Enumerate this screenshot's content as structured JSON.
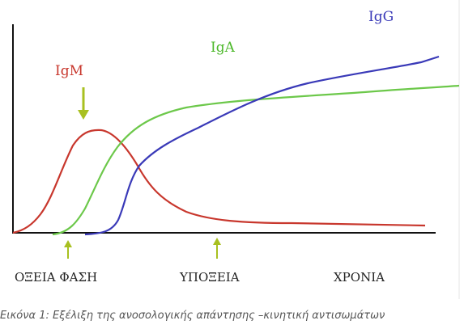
{
  "curve_labels": {
    "igm": "IgM",
    "iga": "IgA",
    "igg": "IgG"
  },
  "phases": [
    "ΟΞΕΙΑ ΦΑΣΗ",
    "ΥΠΟΞΕΙΑ",
    "ΧΡΟΝΙΑ"
  ],
  "caption": "Εικόνα 1: Εξέλιξη της ανοσολογικής απάντησης –κινητική αντισωμάτων"
}
